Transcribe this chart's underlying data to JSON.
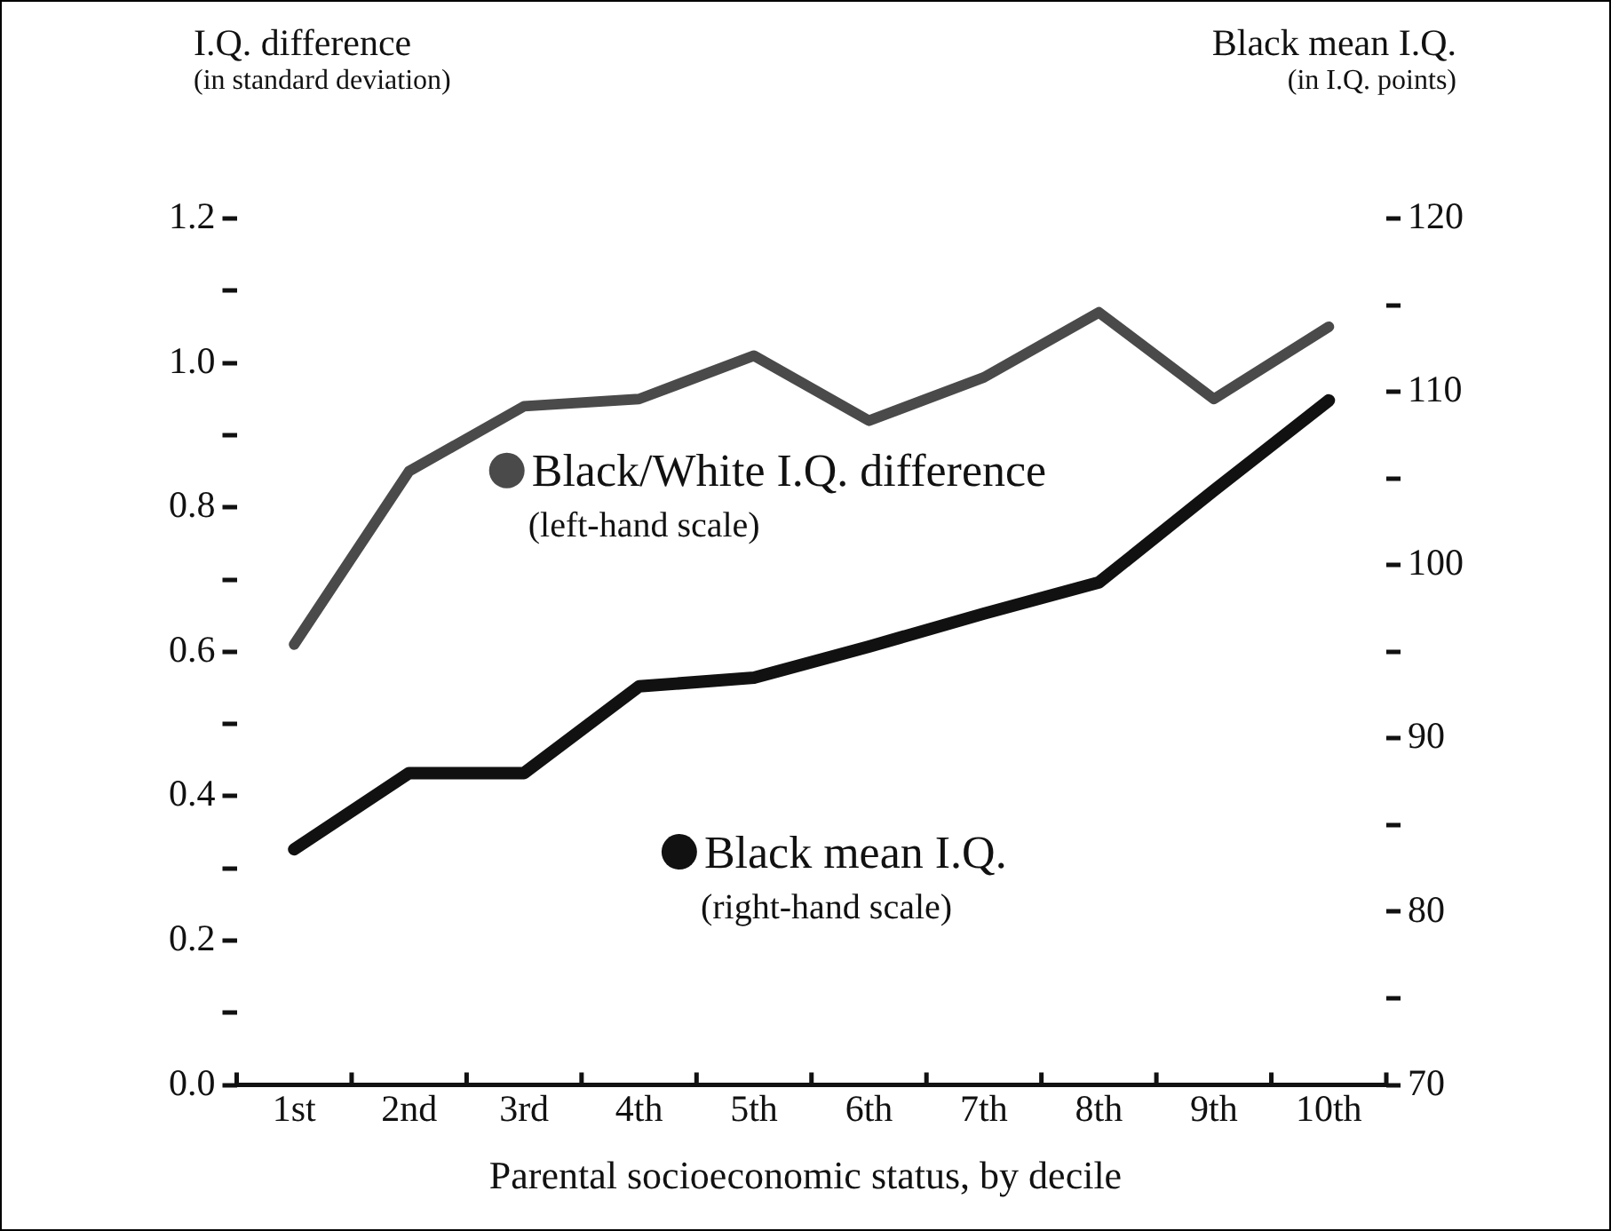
{
  "chart_data": {
    "type": "line",
    "xlabel": "Parental socioeconomic status, by decile",
    "ylabel": "I.Q. difference\n(in standard deviation)",
    "y2label": "Black mean I.Q.\n(in I.Q. points)",
    "categories": [
      "1st",
      "2nd",
      "3rd",
      "4th",
      "5th",
      "6th",
      "7th",
      "8th",
      "9th",
      "10th"
    ],
    "series": [
      {
        "name": "Black/White I.Q. difference",
        "color": "#4a4a4a",
        "values": [
          0.61,
          0.85,
          0.94,
          0.95,
          1.01,
          0.92,
          0.98,
          1.07,
          0.95,
          1.05
        ]
      },
      {
        "name": "Black mean I.Q.",
        "color": "#111111",
        "axis": "y2",
        "values": [
          83.6,
          88.0,
          88.0,
          93.0,
          93.5,
          95.3,
          97.2,
          99.0,
          104.3,
          109.5
        ]
      }
    ],
    "annotations": [
      "(left-hand scale)",
      "(right-hand scale)"
    ],
    "ylim": [
      0,
      1.2
    ],
    "yticks": [
      {
        "value": 0,
        "label": "0.0"
      },
      {
        "value": 0.1,
        "label": null
      },
      0.2,
      {
        "value": 0.3,
        "label": null
      },
      0.4,
      {
        "value": 0.5,
        "label": null
      },
      0.6,
      {
        "value": 0.7,
        "label": null
      },
      0.8,
      {
        "value": 0.9,
        "label": null
      },
      {
        "value": 1,
        "label": "1.0"
      },
      {
        "value": 1.1,
        "label": null
      },
      1.2
    ],
    "y2lim": [
      70,
      120
    ],
    "y2ticks": [
      70,
      {
        "value": 75,
        "label": null
      },
      80,
      {
        "value": 85,
        "label": null
      },
      90,
      {
        "value": 95,
        "label": null
      },
      100,
      {
        "value": 105,
        "label": null
      },
      110,
      {
        "value": 115,
        "label": null
      },
      120
    ],
    "grid": false,
    "legend": "center",
    "marker": "none",
    "line_style": "solid"
  }
}
